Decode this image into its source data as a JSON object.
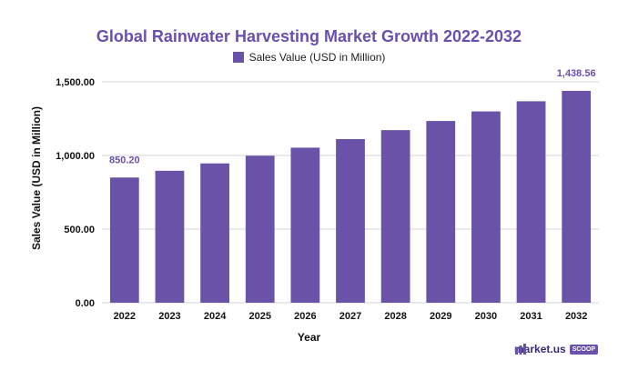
{
  "chart_data": {
    "type": "bar",
    "title": "Global Rainwater Harvesting Market Growth 2022-2032",
    "xlabel": "Year",
    "ylabel": "Sales Value (USD in Million)",
    "categories": [
      "2022",
      "2023",
      "2024",
      "2025",
      "2026",
      "2027",
      "2028",
      "2029",
      "2030",
      "2031",
      "2032"
    ],
    "series": [
      {
        "name": "Sales Value (USD in Million)",
        "values": [
          850.2,
          896.0,
          946.0,
          998.0,
          1053.0,
          1111.0,
          1172.0,
          1234.0,
          1299.0,
          1368.0,
          1438.56
        ]
      }
    ],
    "ylim": [
      0,
      1500
    ],
    "yticks": [
      "0.00",
      "500.00",
      "1,000.00",
      "1,500.00"
    ],
    "data_labels": [
      {
        "category": "2022",
        "text": "850.20"
      },
      {
        "category": "2032",
        "text": "1,438.56"
      }
    ],
    "bar_color": "#6a52a8",
    "accent_color": "#6b4fb0",
    "grid": true,
    "legend_position": "top"
  },
  "brand": {
    "name": "market.us",
    "badge": "SCOOP"
  }
}
